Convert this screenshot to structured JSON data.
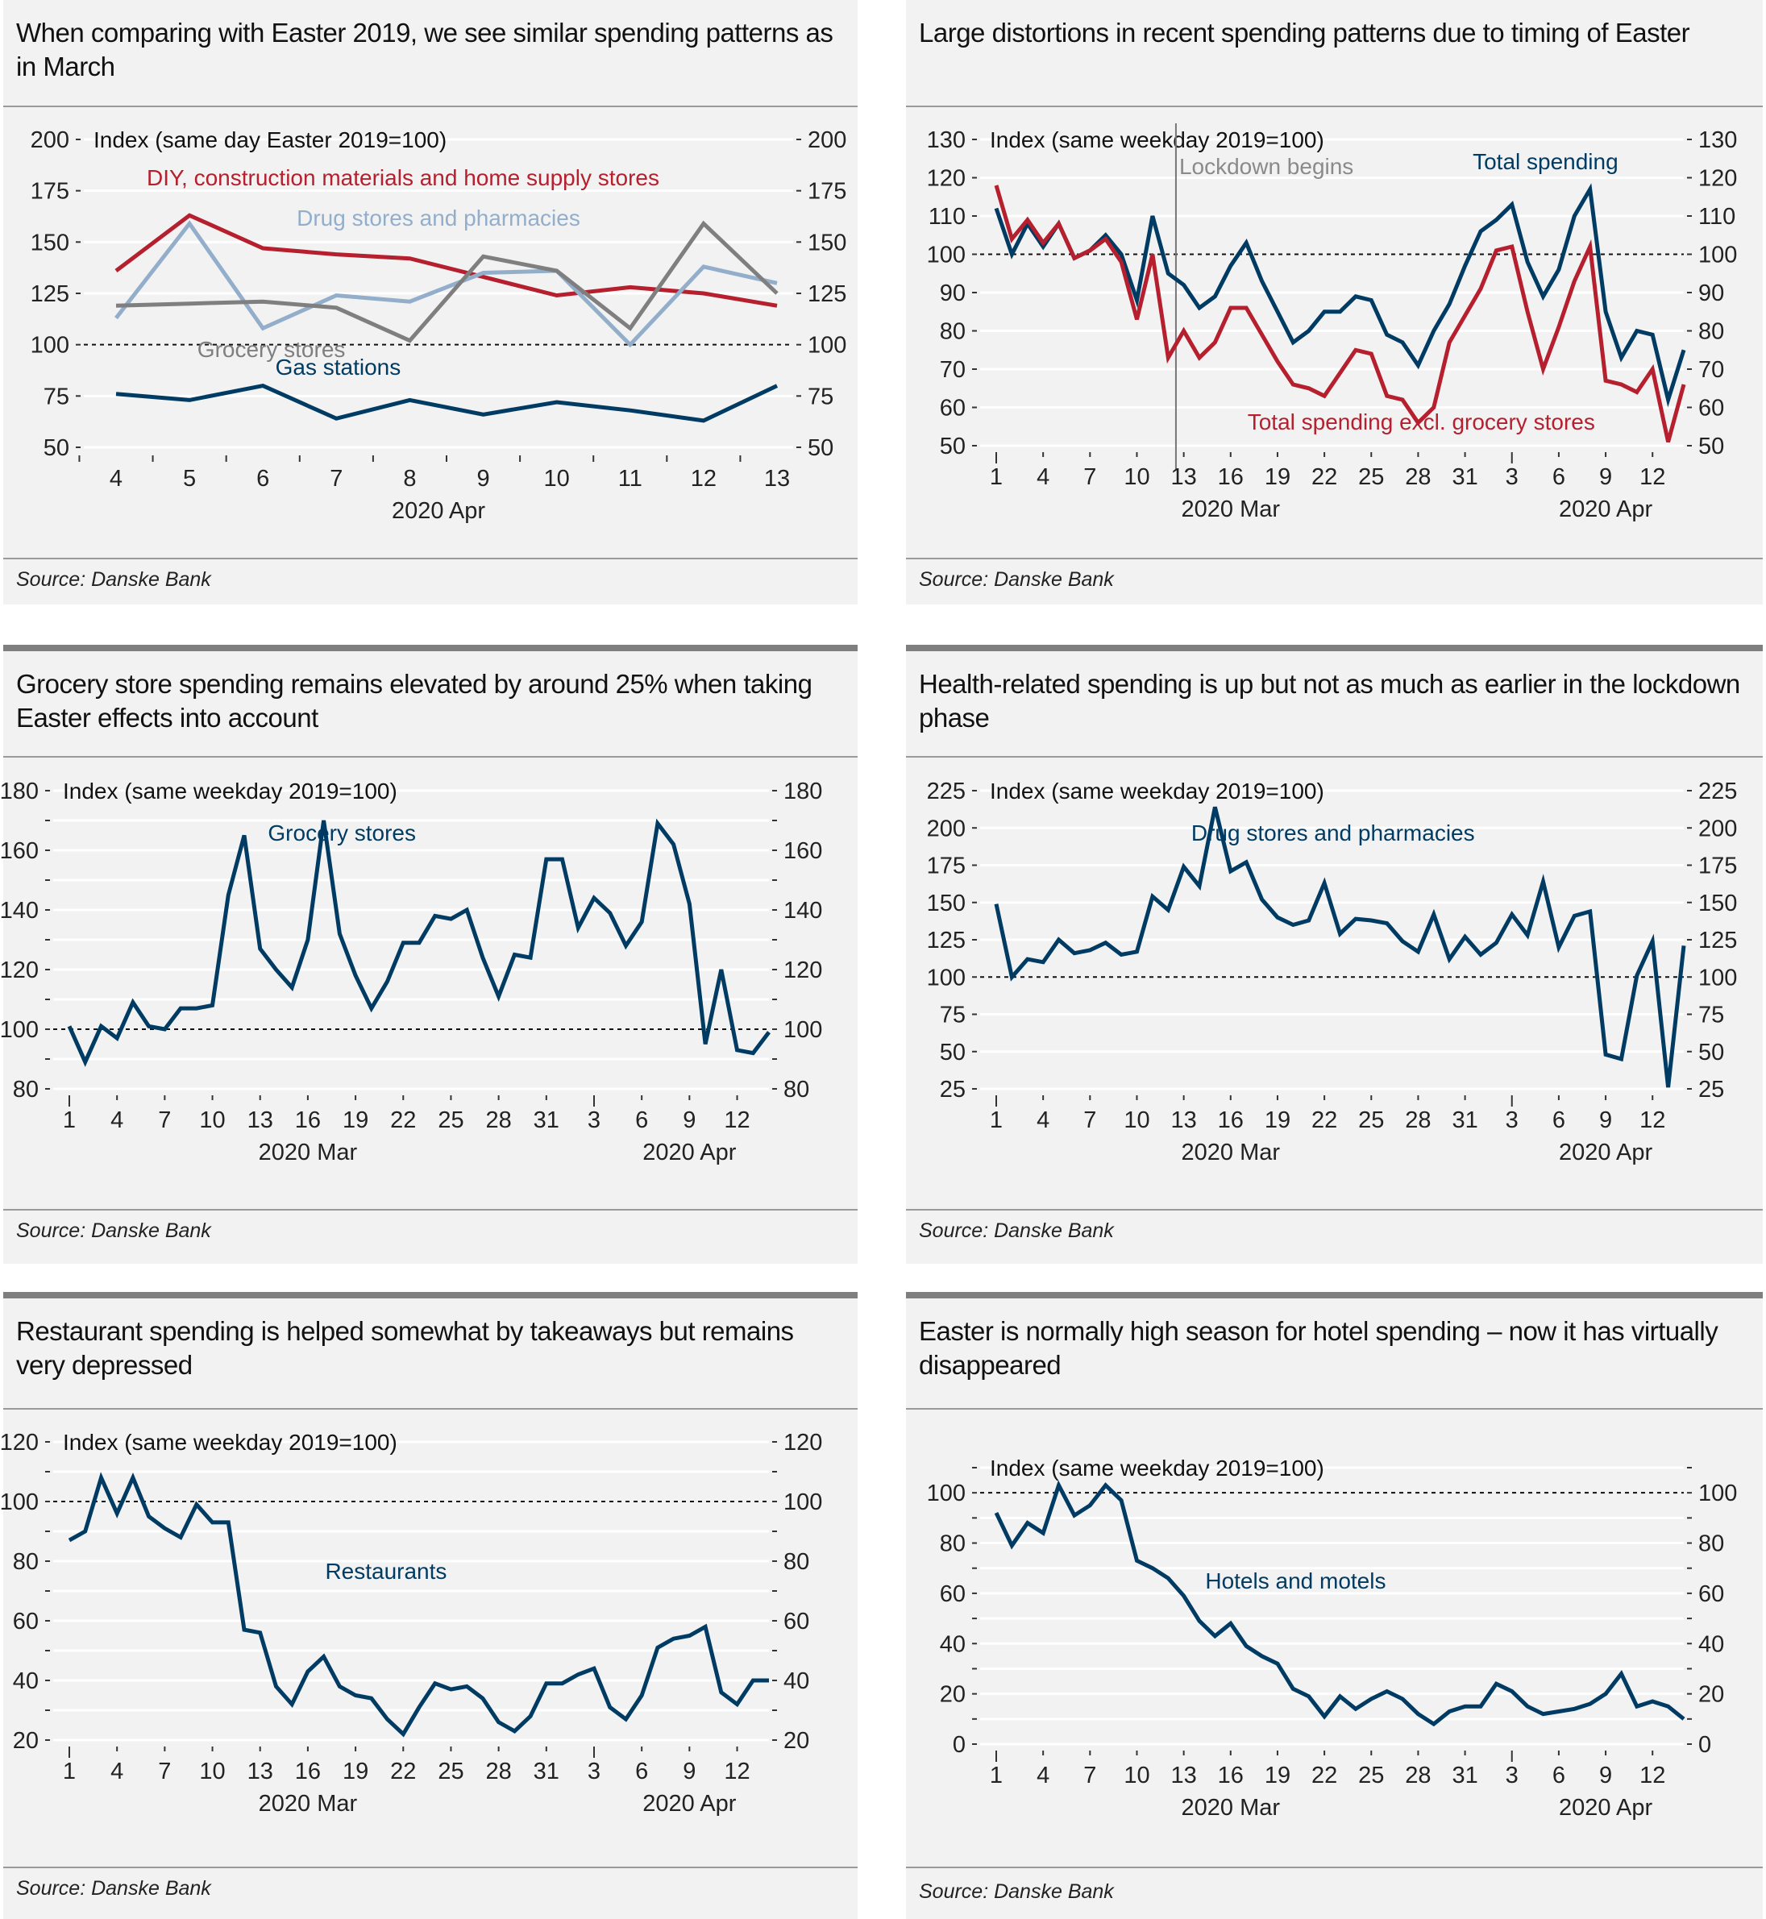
{
  "source_label": "Source: Danske Bank",
  "chart_data": [
    {
      "type": "line",
      "title": "When comparing with Easter 2019, we see similar spending patterns as in March",
      "ylabel": "Index (same day Easter 2019=100)",
      "ylim": [
        50,
        200
      ],
      "yticks": [
        50,
        75,
        100,
        125,
        150,
        175,
        200
      ],
      "reference_line": 100,
      "x": [
        4,
        5,
        6,
        7,
        8,
        9,
        10,
        11,
        12,
        13
      ],
      "xtick_labels": [
        "4",
        "5",
        "6",
        "7",
        "8",
        "9",
        "10",
        "11",
        "12",
        "13"
      ],
      "xlabel_groups": [
        {
          "label": "2020 Apr"
        }
      ],
      "grid": true,
      "series": [
        {
          "name": "DIY, construction materials and home supply stores",
          "color": "#b51f2e",
          "values": [
            136,
            163,
            147,
            144,
            142,
            133,
            124,
            128,
            125,
            119
          ]
        },
        {
          "name": "Drug stores and pharmacies",
          "color": "#92aecb",
          "values": [
            113,
            159,
            108,
            124,
            121,
            135,
            136,
            100,
            138,
            130
          ]
        },
        {
          "name": "Grocery stores",
          "color": "#7f7f7f",
          "values": [
            119,
            120,
            121,
            118,
            102,
            143,
            136,
            108,
            159,
            125
          ]
        },
        {
          "name": "Gas stations",
          "color": "#003b63",
          "values": [
            76,
            73,
            80,
            64,
            73,
            66,
            72,
            68,
            63,
            80
          ]
        }
      ]
    },
    {
      "type": "line",
      "title": "Large distortions in recent spending patterns due to timing of Easter",
      "ylabel": "Index (same weekday 2019=100)",
      "ylim": [
        50,
        130
      ],
      "yticks": [
        50,
        60,
        70,
        80,
        90,
        100,
        110,
        120,
        130
      ],
      "reference_line": 100,
      "annotation": "Lockdown begins",
      "annotation_x_index": 11.5,
      "xtick_labels": [
        "1",
        "4",
        "7",
        "10",
        "13",
        "16",
        "19",
        "22",
        "25",
        "28",
        "31",
        "3",
        "6",
        "9",
        "12"
      ],
      "xlabel_groups": [
        {
          "label": "2020 Mar"
        },
        {
          "label": "2020 Apr"
        }
      ],
      "grid": true,
      "series": [
        {
          "name": "Total spending",
          "color": "#003b63",
          "values": [
            112,
            100,
            108,
            102,
            108,
            99,
            101,
            105,
            100,
            88,
            110,
            95,
            92,
            86,
            89,
            97,
            103,
            93,
            85,
            77,
            80,
            85,
            85,
            89,
            88,
            79,
            77,
            71,
            80,
            87,
            97,
            106,
            109,
            113,
            98,
            89,
            96,
            110,
            117,
            85,
            73,
            80,
            79,
            62,
            75
          ]
        },
        {
          "name": "Total spending excl. grocery stores",
          "color": "#b51f2e",
          "values": [
            118,
            104,
            109,
            103,
            108,
            99,
            101,
            104,
            98,
            83,
            100,
            73,
            80,
            73,
            77,
            86,
            86,
            79,
            72,
            66,
            65,
            63,
            69,
            75,
            74,
            63,
            62,
            56,
            60,
            77,
            84,
            91,
            101,
            102,
            85,
            70,
            81,
            93,
            102,
            67,
            66,
            64,
            70,
            51,
            66
          ]
        }
      ]
    },
    {
      "type": "line",
      "title": "Grocery store spending remains elevated by around 25% when taking Easter effects into account",
      "ylabel": "Index (same weekday 2019=100)",
      "ylim": [
        80,
        180
      ],
      "yticks": [
        80,
        100,
        120,
        140,
        160,
        180
      ],
      "minor_yticks": [
        90,
        110,
        130,
        150,
        170
      ],
      "reference_line": 100,
      "xtick_labels": [
        "1",
        "4",
        "7",
        "10",
        "13",
        "16",
        "19",
        "22",
        "25",
        "28",
        "31",
        "3",
        "6",
        "9",
        "12"
      ],
      "xlabel_groups": [
        {
          "label": "2020 Mar"
        },
        {
          "label": "2020 Apr"
        }
      ],
      "grid": true,
      "series": [
        {
          "name": "Grocery stores",
          "color": "#003b63",
          "values": [
            101,
            89,
            101,
            97,
            109,
            101,
            100,
            107,
            107,
            108,
            145,
            165,
            127,
            120,
            114,
            130,
            170,
            132,
            118,
            107,
            116,
            129,
            129,
            138,
            137,
            140,
            124,
            111,
            125,
            124,
            157,
            157,
            134,
            144,
            139,
            128,
            136,
            169,
            162,
            142,
            95,
            120,
            93,
            92,
            99
          ]
        }
      ]
    },
    {
      "type": "line",
      "title": "Health-related spending is up but not as much as earlier in the lockdown phase",
      "ylabel": "Index (same weekday 2019=100)",
      "ylim": [
        25,
        225
      ],
      "yticks": [
        25,
        50,
        75,
        100,
        125,
        150,
        175,
        200,
        225
      ],
      "reference_line": 100,
      "xtick_labels": [
        "1",
        "4",
        "7",
        "10",
        "13",
        "16",
        "19",
        "22",
        "25",
        "28",
        "31",
        "3",
        "6",
        "9",
        "12"
      ],
      "xlabel_groups": [
        {
          "label": "2020 Mar"
        },
        {
          "label": "2020 Apr"
        }
      ],
      "grid": true,
      "series": [
        {
          "name": "Drug stores and pharmacies",
          "color": "#003b63",
          "values": [
            149,
            100,
            112,
            110,
            125,
            116,
            118,
            123,
            115,
            117,
            154,
            145,
            174,
            161,
            214,
            171,
            177,
            152,
            140,
            135,
            138,
            163,
            129,
            139,
            138,
            136,
            124,
            117,
            142,
            112,
            127,
            115,
            123,
            142,
            128,
            164,
            120,
            141,
            144,
            48,
            45,
            101,
            124,
            26,
            121
          ]
        }
      ]
    },
    {
      "type": "line",
      "title": "Restaurant spending is helped somewhat by takeaways but remains very depressed",
      "ylabel": "Index (same weekday 2019=100)",
      "ylim": [
        20,
        120
      ],
      "yticks": [
        20,
        40,
        60,
        80,
        100,
        120
      ],
      "minor_yticks": [
        30,
        50,
        70,
        90,
        110
      ],
      "reference_line": 100,
      "xtick_labels": [
        "1",
        "4",
        "7",
        "10",
        "13",
        "16",
        "19",
        "22",
        "25",
        "28",
        "31",
        "3",
        "6",
        "9",
        "12"
      ],
      "xlabel_groups": [
        {
          "label": "2020 Mar"
        },
        {
          "label": "2020 Apr"
        }
      ],
      "grid": true,
      "series": [
        {
          "name": "Restaurants",
          "color": "#003b63",
          "values": [
            87,
            90,
            108,
            96,
            108,
            95,
            91,
            88,
            99,
            93,
            93,
            57,
            56,
            38,
            32,
            43,
            48,
            38,
            35,
            34,
            27,
            22,
            31,
            39,
            37,
            38,
            34,
            26,
            23,
            28,
            39,
            39,
            42,
            44,
            31,
            27,
            35,
            51,
            54,
            55,
            58,
            36,
            32,
            40,
            40
          ]
        }
      ]
    },
    {
      "type": "line",
      "title": "Easter is normally high season for hotel spending – now it has virtually disappeared",
      "ylabel": "Index (same weekday 2019=100)",
      "ylim": [
        0,
        110
      ],
      "yticks": [
        0,
        20,
        40,
        60,
        80,
        100
      ],
      "minor_yticks": [
        10,
        30,
        50,
        70,
        90,
        110
      ],
      "reference_line": 100,
      "xtick_labels": [
        "1",
        "4",
        "7",
        "10",
        "13",
        "16",
        "19",
        "22",
        "25",
        "28",
        "31",
        "3",
        "6",
        "9",
        "12"
      ],
      "xlabel_groups": [
        {
          "label": "2020 Mar"
        },
        {
          "label": "2020 Apr"
        }
      ],
      "grid": true,
      "series": [
        {
          "name": "Hotels and motels",
          "color": "#003b63",
          "values": [
            92,
            79,
            88,
            84,
            103,
            91,
            95,
            103,
            97,
            73,
            70,
            66,
            59,
            49,
            43,
            48,
            39,
            35,
            32,
            22,
            19,
            11,
            19,
            14,
            18,
            21,
            18,
            12,
            8,
            13,
            15,
            15,
            24,
            21,
            15,
            12,
            13,
            14,
            16,
            20,
            28,
            15,
            17,
            15,
            10
          ]
        }
      ]
    }
  ]
}
